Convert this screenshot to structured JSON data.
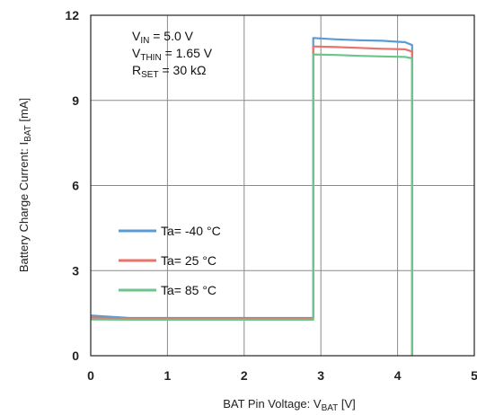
{
  "chart_data": {
    "type": "line",
    "xlim": [
      0,
      5
    ],
    "ylim": [
      0,
      12
    ],
    "x_ticks": [
      "0",
      "1",
      "2",
      "3",
      "4",
      "5"
    ],
    "y_ticks": [
      "0",
      "3",
      "6",
      "9",
      "12"
    ],
    "xlabel": {
      "main": "BAT Pin Voltage: V",
      "sub": "BAT",
      "unit": " [V]"
    },
    "ylabel": {
      "main": "Battery Charge Current: I",
      "sub": "BAT",
      "unit": " [mA]"
    },
    "grid": true,
    "annotations": [
      {
        "main": "V",
        "sub": "IN",
        "rest": " = 5.0 V"
      },
      {
        "main": "V",
        "sub": "THIN",
        "rest": " = 1.65 V"
      },
      {
        "main": "R",
        "sub": "SET",
        "rest": " = 30 kΩ"
      }
    ],
    "legend_position": "left-lower",
    "series": [
      {
        "name": "Ta=  -40 °C",
        "color": "#5b9bd5",
        "points": [
          [
            0,
            1.42
          ],
          [
            0.5,
            1.33
          ],
          [
            1,
            1.33
          ],
          [
            1.5,
            1.33
          ],
          [
            2,
            1.33
          ],
          [
            2.5,
            1.33
          ],
          [
            2.9,
            1.33
          ],
          [
            2.9,
            11.2
          ],
          [
            3.2,
            11.15
          ],
          [
            3.5,
            11.12
          ],
          [
            3.8,
            11.1
          ],
          [
            4.1,
            11.05
          ],
          [
            4.19,
            10.95
          ],
          [
            4.19,
            0
          ]
        ]
      },
      {
        "name": "Ta=  25 °C",
        "color": "#e8736b",
        "points": [
          [
            0,
            1.35
          ],
          [
            0.5,
            1.3
          ],
          [
            1,
            1.3
          ],
          [
            1.5,
            1.3
          ],
          [
            2,
            1.3
          ],
          [
            2.5,
            1.3
          ],
          [
            2.9,
            1.3
          ],
          [
            2.9,
            10.9
          ],
          [
            3.2,
            10.88
          ],
          [
            3.5,
            10.85
          ],
          [
            3.8,
            10.82
          ],
          [
            4.1,
            10.8
          ],
          [
            4.19,
            10.72
          ],
          [
            4.19,
            0
          ]
        ]
      },
      {
        "name": "Ta=  85 °C",
        "color": "#6cc58a",
        "points": [
          [
            0,
            1.28
          ],
          [
            0.5,
            1.27
          ],
          [
            1,
            1.27
          ],
          [
            1.5,
            1.27
          ],
          [
            2,
            1.27
          ],
          [
            2.5,
            1.27
          ],
          [
            2.9,
            1.27
          ],
          [
            2.9,
            10.62
          ],
          [
            3.2,
            10.6
          ],
          [
            3.5,
            10.57
          ],
          [
            3.8,
            10.55
          ],
          [
            4.1,
            10.53
          ],
          [
            4.19,
            10.48
          ],
          [
            4.19,
            0
          ]
        ]
      }
    ]
  }
}
